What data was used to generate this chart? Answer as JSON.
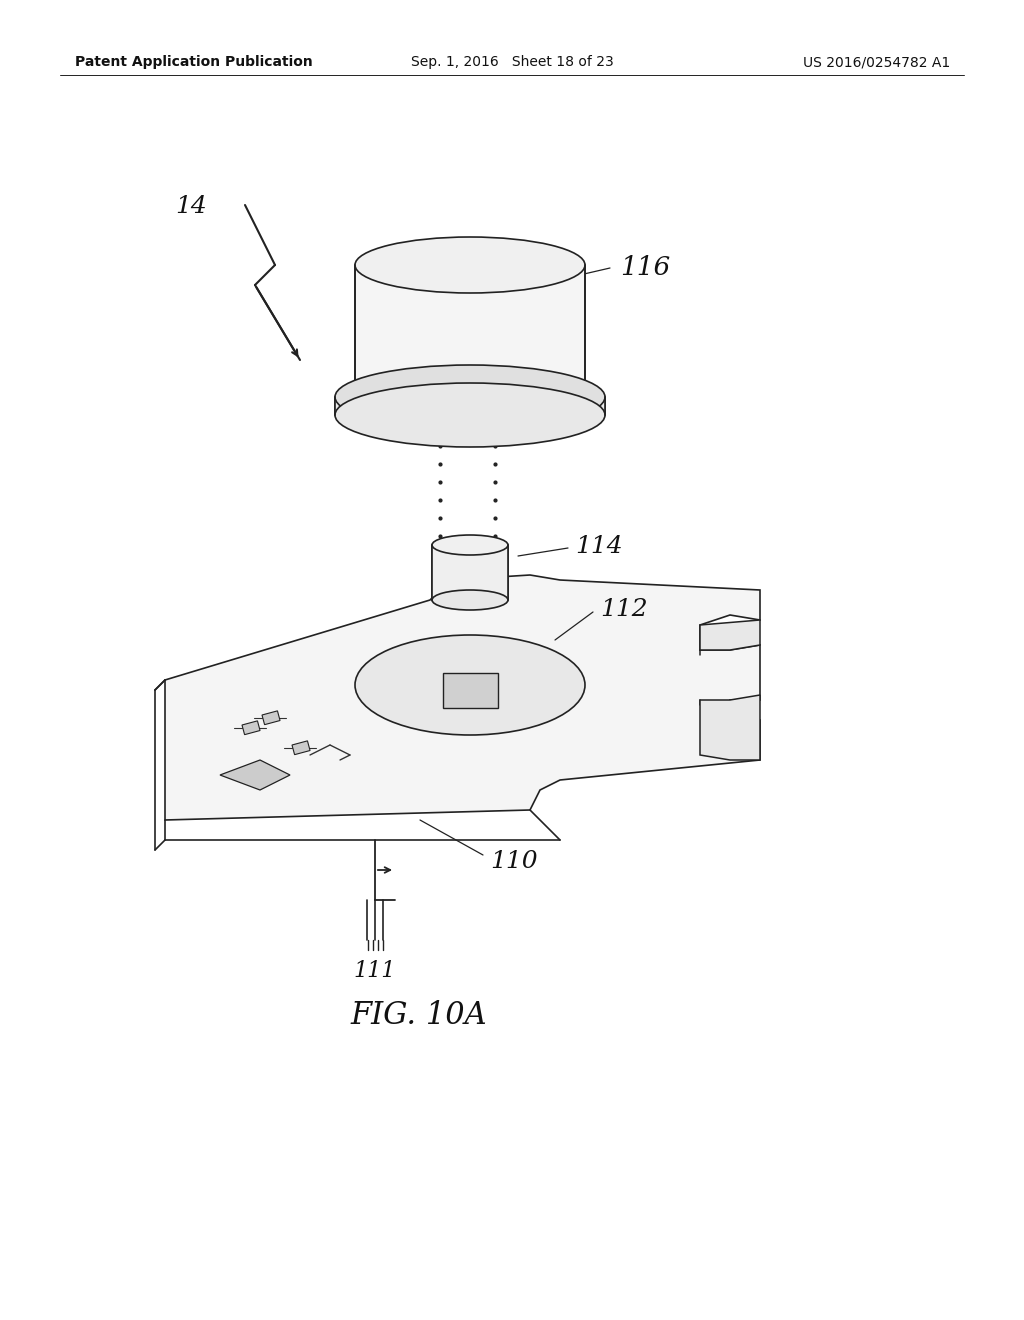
{
  "bg_color": "#ffffff",
  "header_left": "Patent Application Publication",
  "header_mid": "Sep. 1, 2016   Sheet 18 of 23",
  "header_right": "US 2016/0254782 A1",
  "fig_label": "FIG. 10A",
  "label_14": "14",
  "label_116": "116",
  "label_114": "114",
  "label_112": "112",
  "label_110": "110",
  "label_111": "111"
}
